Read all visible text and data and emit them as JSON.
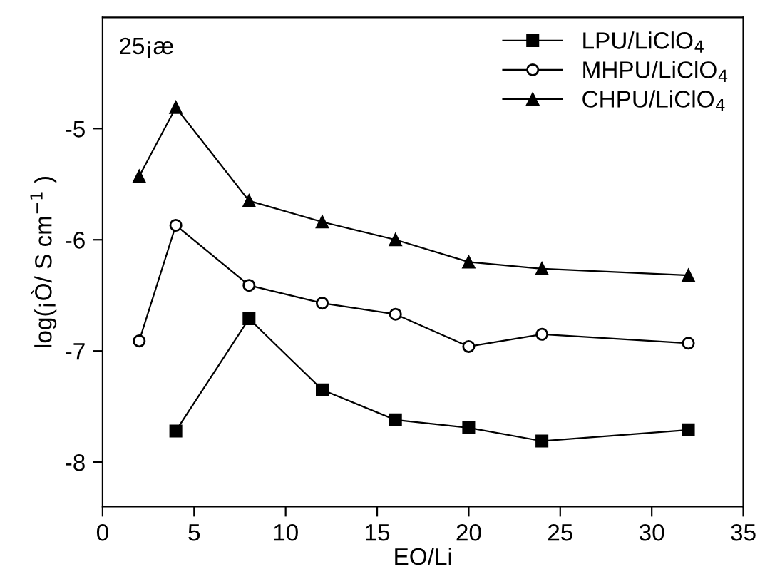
{
  "chart_data": {
    "type": "line",
    "xlabel": "EO/Li",
    "ylabel": "log(¡Ò/ S cm$^{−1}$ )",
    "annotations": [
      "25¡æ"
    ],
    "xlim": [
      0,
      35
    ],
    "xticks": [
      0,
      5,
      10,
      15,
      20,
      25,
      30,
      35
    ],
    "ylim": [
      -8.4,
      -4
    ],
    "yticks": [
      -8,
      -7,
      -6,
      -5
    ],
    "grid": false,
    "legend": "top right",
    "line_style": "solid",
    "series": [
      {
        "name": "LPU/LiClO$_{4}$",
        "color": "#000000",
        "marker": "square",
        "x": [
          4,
          8,
          12,
          16,
          20,
          24,
          32
        ],
        "values": [
          -7.72,
          -6.71,
          -7.35,
          -7.62,
          -7.69,
          -7.81,
          -7.71
        ]
      },
      {
        "name": "MHPU/LiClO$_{4}$",
        "color": "#000000",
        "marker": "circle",
        "x": [
          2,
          4,
          8,
          12,
          16,
          20,
          24,
          32
        ],
        "values": [
          -6.91,
          -5.87,
          -6.41,
          -6.57,
          -6.67,
          -6.96,
          -6.85,
          -6.93
        ]
      },
      {
        "name": "CHPU/LiClO$_{4}$",
        "color": "#000000",
        "marker": "triangle",
        "x": [
          2,
          4,
          8,
          12,
          16,
          20,
          24,
          32
        ],
        "values": [
          -5.43,
          -4.81,
          -5.65,
          -5.84,
          -6.0,
          -6.2,
          -6.26,
          -6.32
        ]
      }
    ]
  }
}
